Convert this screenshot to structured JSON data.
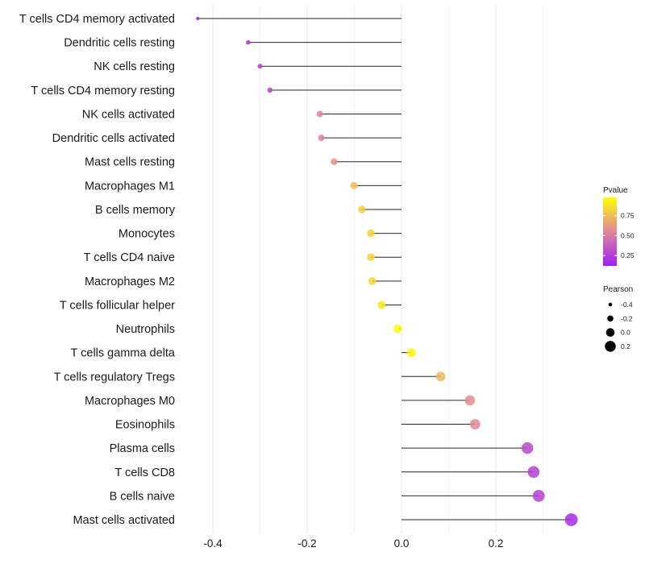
{
  "chart_data": {
    "type": "lollipop",
    "title": "",
    "xlabel": "",
    "ylabel": "",
    "xlim": [
      -0.45,
      0.38
    ],
    "x_ticks": [
      -0.4,
      -0.2,
      0.0,
      0.2
    ],
    "x_tick_labels": [
      "-0.4",
      "-0.2",
      "0.0",
      "0.2"
    ],
    "minor_gridlines": [
      -0.3,
      -0.1,
      0.1,
      0.3
    ],
    "grid": true,
    "categories": [
      "T cells CD4 memory activated",
      "Dendritic cells resting",
      "NK cells resting",
      "T cells CD4 memory resting",
      "NK cells activated",
      "Dendritic cells activated",
      "Mast cells resting",
      "Macrophages M1",
      "B cells memory",
      "Monocytes",
      "T cells CD4 naive",
      "Macrophages M2",
      "T cells follicular helper",
      "Neutrophils",
      "T cells gamma delta",
      "T cells regulatory  Tregs ",
      "Macrophages M0",
      "Eosinophils",
      "Plasma cells",
      "T cells CD8",
      "B cells naive",
      "Mast cells activated"
    ],
    "series": [
      {
        "name": "Pearson",
        "values": [
          -0.432,
          -0.325,
          -0.3,
          -0.279,
          -0.173,
          -0.17,
          -0.143,
          -0.101,
          -0.084,
          -0.065,
          -0.065,
          -0.062,
          -0.042,
          -0.008,
          0.021,
          0.083,
          0.145,
          0.156,
          0.267,
          0.28,
          0.291,
          0.36
        ]
      },
      {
        "name": "Pvalue",
        "values": [
          0.13,
          0.24,
          0.25,
          0.27,
          0.55,
          0.55,
          0.6,
          0.75,
          0.8,
          0.83,
          0.83,
          0.84,
          0.9,
          0.97,
          0.95,
          0.73,
          0.58,
          0.56,
          0.28,
          0.26,
          0.26,
          0.17
        ]
      }
    ],
    "legend": {
      "placement": "right",
      "color": {
        "title": "Pvalue",
        "ticks": [
          0.25,
          0.5,
          0.75
        ],
        "tick_labels": [
          "0.25",
          "0.50",
          "0.75"
        ],
        "range": [
          0.12,
          0.98
        ],
        "colors": {
          "low": "#a020f0",
          "mid": "#e0859a",
          "high": "#ffff00"
        }
      },
      "size": {
        "title": "Pearson",
        "values": [
          -0.4,
          -0.2,
          0.0,
          0.2
        ],
        "labels": [
          "-0.4",
          "-0.2",
          "0.0",
          "0.2"
        ]
      }
    },
    "colors": {
      "segment": "#000000",
      "grid": "#ebebeb",
      "legend_point": "#000000"
    }
  }
}
